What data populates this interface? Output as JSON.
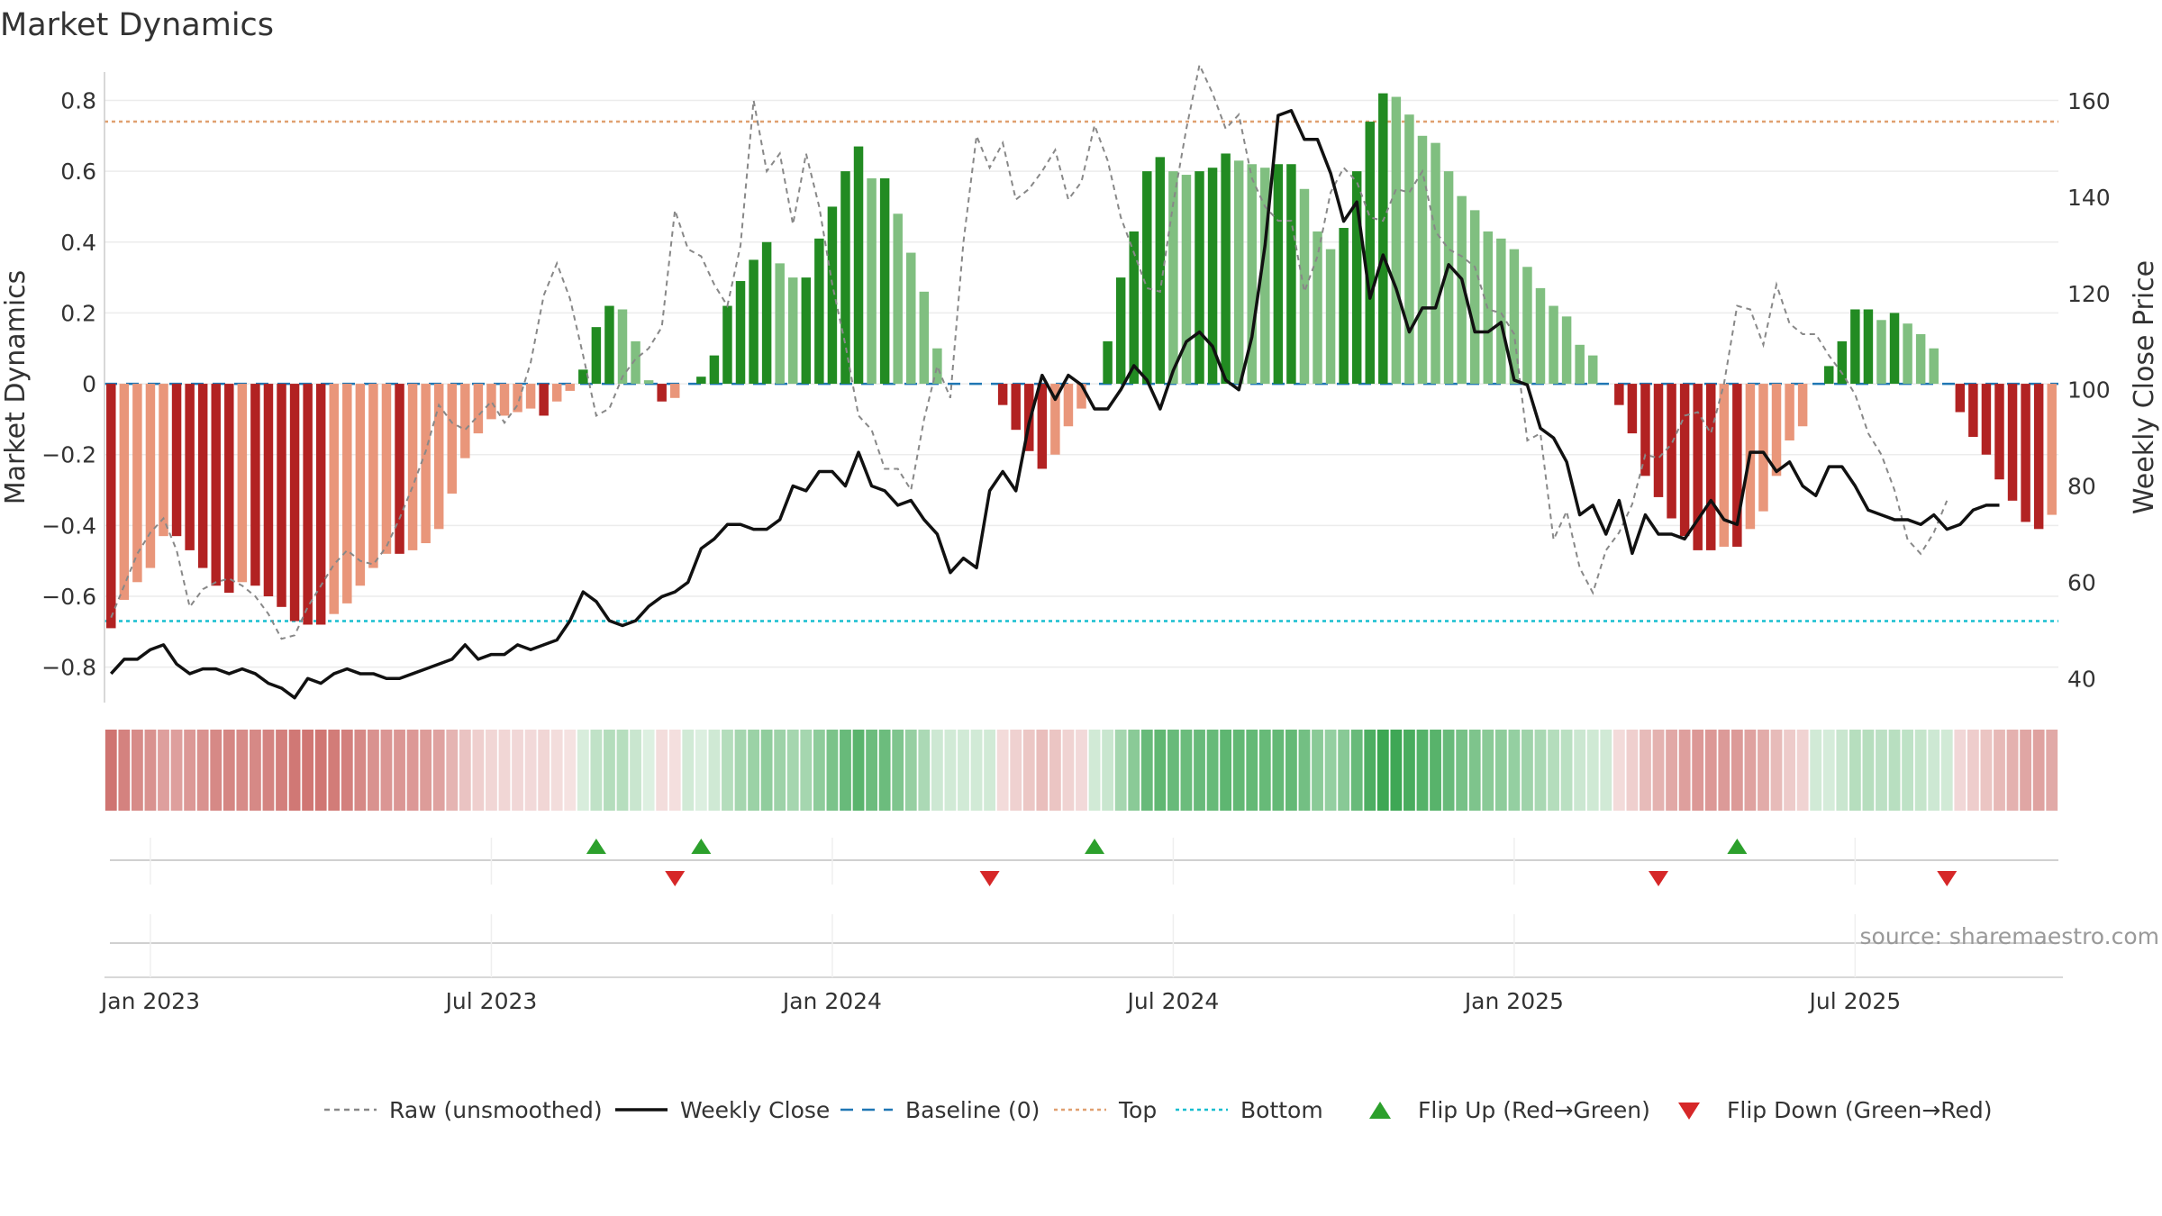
{
  "title": "Market Dynamics",
  "source": "source: sharemaestro.com",
  "chart_data": {
    "type": "bar",
    "title": "Market Dynamics",
    "ylabel_left": "Market Dynamics",
    "ylabel_right": "Weekly Close Price",
    "ylim_left": [
      -0.9,
      0.88
    ],
    "ylim_right": [
      35,
      166
    ],
    "yticks_left": [
      -0.8,
      -0.6,
      -0.4,
      -0.2,
      0,
      0.2,
      0.4,
      0.6,
      0.8
    ],
    "yticks_left_labels": [
      "−0.8",
      "−0.6",
      "−0.4",
      "−0.2",
      "0",
      "0.2",
      "0.4",
      "0.6",
      "0.8"
    ],
    "yticks_right": [
      40,
      60,
      80,
      100,
      120,
      140,
      160
    ],
    "x_ticks": [
      {
        "label": "Jan 2023",
        "index": 3
      },
      {
        "label": "Jul 2023",
        "index": 29
      },
      {
        "label": "Jan 2024",
        "index": 55
      },
      {
        "label": "Jul 2024",
        "index": 81
      },
      {
        "label": "Jan 2025",
        "index": 107
      },
      {
        "label": "Jul 2025",
        "index": 133
      }
    ],
    "top_line": 0.74,
    "bottom_line": -0.67,
    "baseline": 0,
    "series": [
      {
        "name": "Market Dynamics (smoothed)",
        "values": [
          -0.69,
          -0.61,
          -0.56,
          -0.52,
          -0.43,
          -0.43,
          -0.47,
          -0.52,
          -0.57,
          -0.59,
          -0.56,
          -0.57,
          -0.6,
          -0.63,
          -0.67,
          -0.68,
          -0.68,
          -0.65,
          -0.62,
          -0.57,
          -0.52,
          -0.48,
          -0.48,
          -0.47,
          -0.45,
          -0.41,
          -0.31,
          -0.21,
          -0.14,
          -0.1,
          -0.09,
          -0.08,
          -0.07,
          -0.09,
          -0.05,
          -0.02,
          0.04,
          0.16,
          0.22,
          0.21,
          0.12,
          0.01,
          -0.05,
          -0.04,
          0.0,
          0.02,
          0.08,
          0.22,
          0.29,
          0.35,
          0.4,
          0.34,
          0.3,
          0.3,
          0.41,
          0.5,
          0.6,
          0.67,
          0.58,
          0.58,
          0.48,
          0.37,
          0.26,
          0.1,
          0.0,
          0.0,
          0.0,
          0.0,
          -0.06,
          -0.13,
          -0.19,
          -0.24,
          -0.2,
          -0.12,
          -0.07,
          0.0,
          0.12,
          0.3,
          0.43,
          0.6,
          0.64,
          0.6,
          0.59,
          0.6,
          0.61,
          0.65,
          0.63,
          0.62,
          0.61,
          0.62,
          0.62,
          0.55,
          0.43,
          0.38,
          0.44,
          0.6,
          0.74,
          0.82,
          0.81,
          0.76,
          0.7,
          0.68,
          0.6,
          0.53,
          0.49,
          0.43,
          0.41,
          0.38,
          0.33,
          0.27,
          0.22,
          0.19,
          0.11,
          0.08,
          0.0,
          -0.06,
          -0.14,
          -0.26,
          -0.32,
          -0.38,
          -0.43,
          -0.47,
          -0.47,
          -0.46,
          -0.46,
          -0.41,
          -0.36,
          -0.26,
          -0.16,
          -0.12,
          0.0,
          0.05,
          0.12,
          0.21,
          0.21,
          0.18,
          0.2,
          0.17,
          0.14,
          0.1,
          0.0,
          -0.08,
          -0.15,
          -0.2,
          -0.27,
          -0.33,
          -0.39,
          -0.41,
          -0.37
        ]
      },
      {
        "name": "Raw (unsmoothed)",
        "values": [
          -0.66,
          -0.57,
          -0.48,
          -0.42,
          -0.38,
          -0.47,
          -0.63,
          -0.58,
          -0.56,
          -0.55,
          -0.57,
          -0.6,
          -0.65,
          -0.72,
          -0.71,
          -0.63,
          -0.57,
          -0.51,
          -0.47,
          -0.5,
          -0.51,
          -0.46,
          -0.38,
          -0.29,
          -0.19,
          -0.06,
          -0.11,
          -0.13,
          -0.09,
          -0.05,
          -0.11,
          -0.06,
          0.06,
          0.25,
          0.34,
          0.24,
          0.08,
          -0.09,
          -0.07,
          0.02,
          0.07,
          0.1,
          0.16,
          0.49,
          0.38,
          0.36,
          0.28,
          0.22,
          0.39,
          0.8,
          0.6,
          0.65,
          0.45,
          0.65,
          0.5,
          0.28,
          0.11,
          -0.09,
          -0.13,
          -0.24,
          -0.24,
          -0.3,
          -0.1,
          0.05,
          -0.04,
          0.4,
          0.7,
          0.61,
          0.68,
          0.52,
          0.55,
          0.6,
          0.66,
          0.52,
          0.57,
          0.73,
          0.63,
          0.47,
          0.37,
          0.27,
          0.26,
          0.51,
          0.72,
          0.9,
          0.82,
          0.72,
          0.76,
          0.58,
          0.5,
          0.46,
          0.46,
          0.26,
          0.36,
          0.54,
          0.61,
          0.57,
          0.47,
          0.46,
          0.55,
          0.54,
          0.6,
          0.43,
          0.38,
          0.36,
          0.33,
          0.21,
          0.2,
          0.14,
          -0.16,
          -0.14,
          -0.44,
          -0.36,
          -0.52,
          -0.59,
          -0.47,
          -0.42,
          -0.34,
          -0.2,
          -0.21,
          -0.17,
          -0.09,
          -0.08,
          -0.14,
          0.0,
          0.22,
          0.21,
          0.11,
          0.28,
          0.17,
          0.14,
          0.14,
          0.08,
          0.03,
          -0.03,
          -0.14,
          -0.2,
          -0.3,
          -0.44,
          -0.48,
          -0.42,
          -0.33
        ]
      },
      {
        "name": "Weekly Close",
        "values": [
          41,
          44,
          44,
          46,
          47,
          43,
          41,
          42,
          42,
          41,
          42,
          41,
          39,
          38,
          36,
          40,
          39,
          41,
          42,
          41,
          41,
          40,
          40,
          41,
          42,
          43,
          44,
          47,
          44,
          45,
          45,
          47,
          46,
          47,
          48,
          52,
          58,
          56,
          52,
          51,
          52,
          55,
          57,
          58,
          60,
          67,
          69,
          72,
          72,
          71,
          71,
          73,
          80,
          79,
          83,
          83,
          80,
          87,
          80,
          79,
          76,
          77,
          73,
          70,
          62,
          65,
          63,
          79,
          83,
          79,
          93,
          103,
          98,
          103,
          101,
          96,
          96,
          100,
          105,
          102,
          96,
          104,
          110,
          112,
          109,
          102,
          100,
          111,
          130,
          157,
          158,
          152,
          152,
          145,
          135,
          139,
          119,
          128,
          121,
          112,
          117,
          117,
          126,
          123,
          112,
          112,
          114,
          102,
          101,
          92,
          90,
          85,
          74,
          76,
          70,
          77,
          66,
          74,
          70,
          70,
          69,
          73,
          77,
          73,
          72,
          87,
          87,
          83,
          85,
          80,
          78,
          84,
          84,
          80,
          75,
          74,
          73,
          73,
          72,
          74,
          71,
          72,
          75,
          76,
          76
        ]
      }
    ],
    "flip_up_index": [
      37,
      45,
      75,
      124
    ],
    "flip_down_index": [
      43,
      67,
      118,
      140
    ],
    "legend": [
      {
        "label": "Raw (unsmoothed)",
        "style": "dashed",
        "color": "#888888"
      },
      {
        "label": "Weekly Close",
        "style": "solid",
        "color": "#111111"
      },
      {
        "label": "Baseline (0)",
        "style": "dashed",
        "color": "#1f77b4"
      },
      {
        "label": "Top",
        "style": "dotted",
        "color": "#e0a070"
      },
      {
        "label": "Bottom",
        "style": "dotted",
        "color": "#17becf"
      },
      {
        "label": "Flip Up (Red→Green)",
        "style": "triangle-up",
        "color": "#2ca02c"
      },
      {
        "label": "Flip Down (Green→Red)",
        "style": "triangle-down",
        "color": "#d62728"
      }
    ],
    "colors": {
      "strong_green": "#228b22",
      "light_green": "#80bf80",
      "strong_red": "#b22222",
      "light_red": "#e9967a",
      "top": "#e0a070",
      "bottom": "#17becf",
      "baseline": "#1f77b4"
    }
  }
}
